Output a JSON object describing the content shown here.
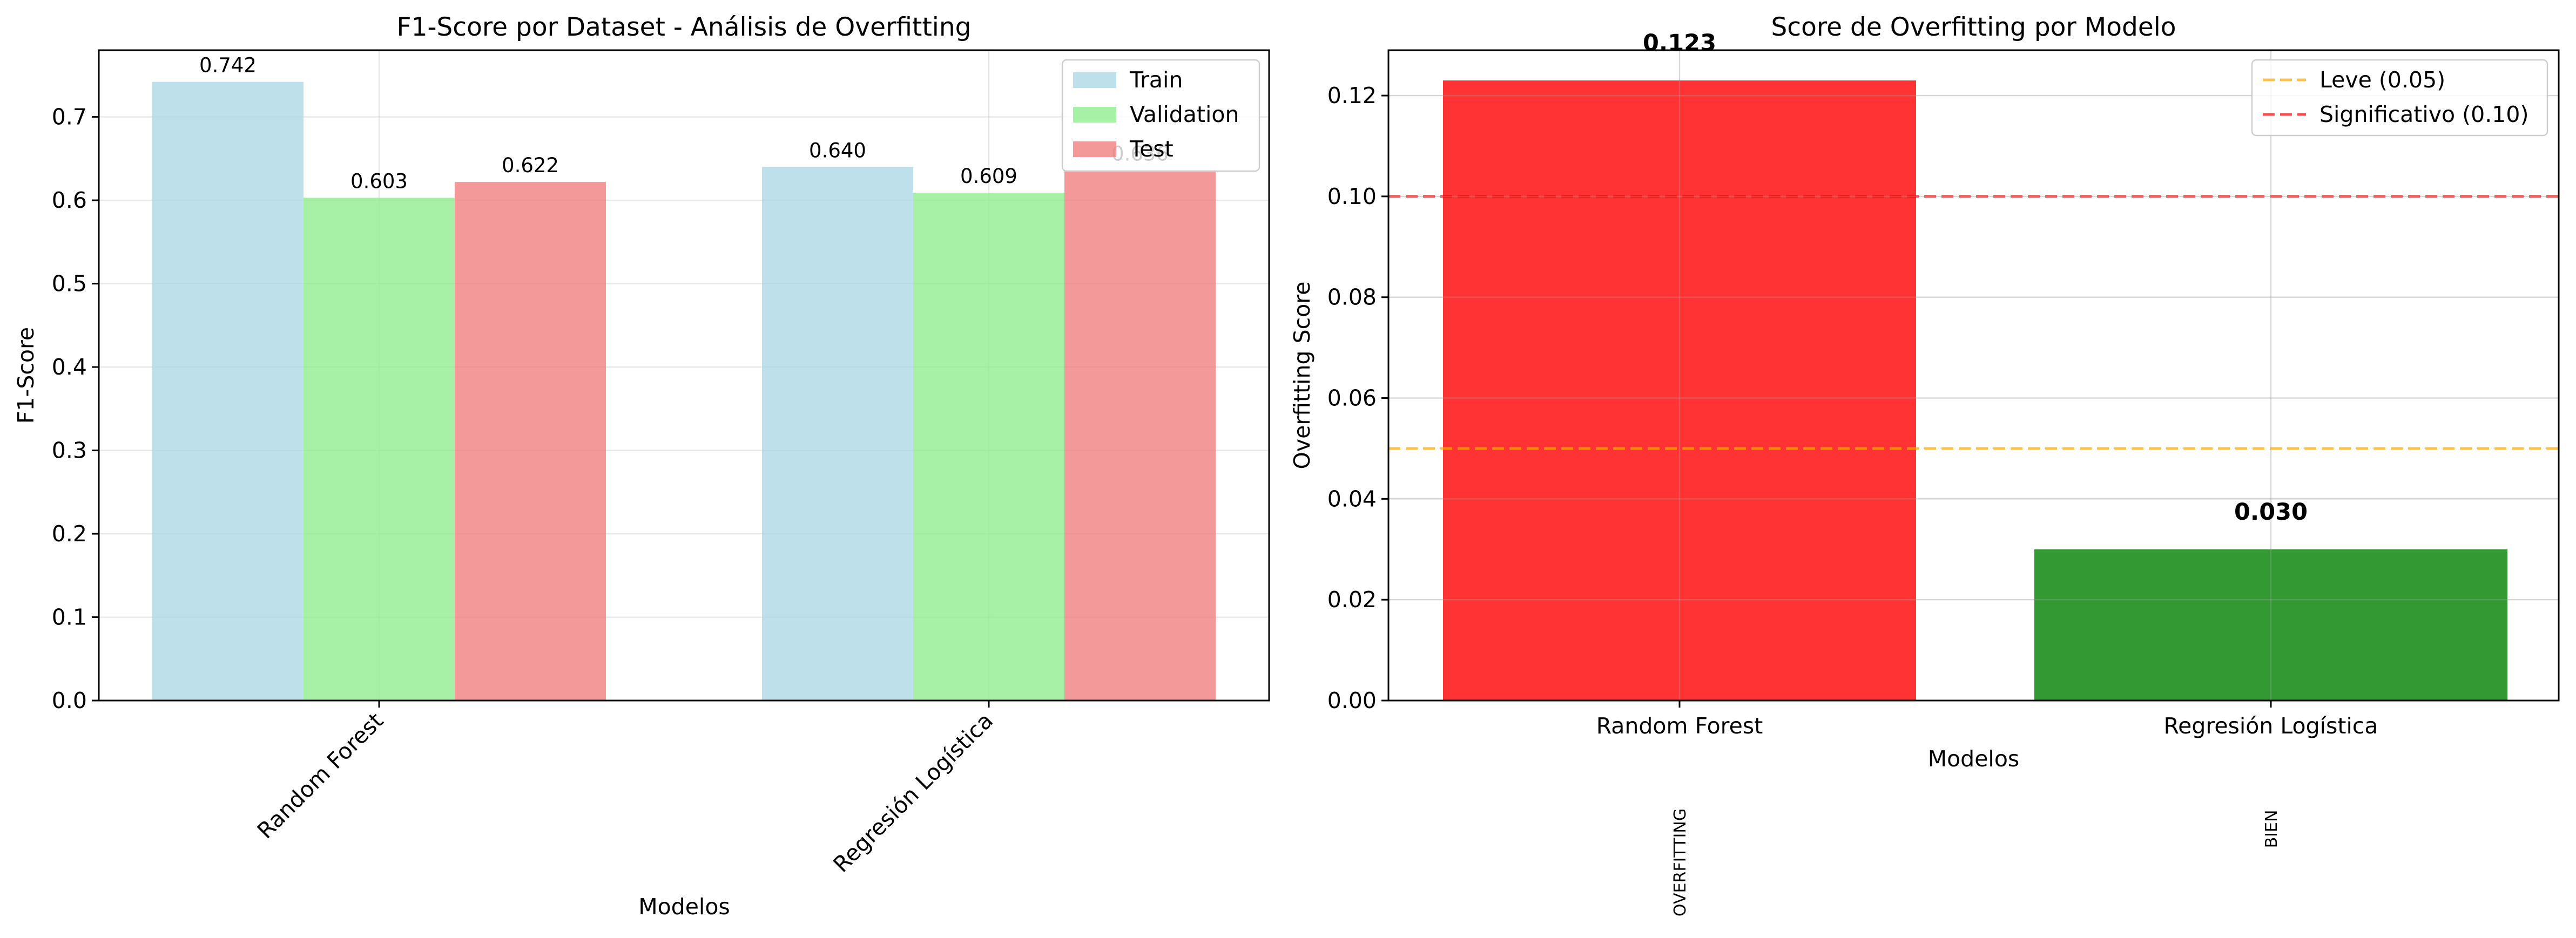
{
  "chart_data": [
    {
      "type": "bar",
      "title": "F1-Score por Dataset - Análisis de Overfitting",
      "xlabel": "Modelos",
      "ylabel": "F1-Score",
      "ylim": [
        0,
        0.78
      ],
      "yticks": [
        0.0,
        0.1,
        0.2,
        0.3,
        0.4,
        0.5,
        0.6,
        0.7
      ],
      "ytick_labels": [
        "0.0",
        "0.1",
        "0.2",
        "0.3",
        "0.4",
        "0.5",
        "0.6",
        "0.7"
      ],
      "categories": [
        "Random Forest",
        "Regresión Logística"
      ],
      "series": [
        {
          "name": "Train",
          "color": "#add8e6",
          "values": [
            0.742,
            0.64
          ],
          "labels": [
            "0.742",
            "0.640"
          ]
        },
        {
          "name": "Validation",
          "color": "#90ee90",
          "values": [
            0.603,
            0.609
          ],
          "labels": [
            "0.603",
            "0.609"
          ]
        },
        {
          "name": "Test",
          "color": "#f08080",
          "values": [
            0.622,
            0.636
          ],
          "labels": [
            "0.622",
            "0.636"
          ]
        }
      ],
      "grid": true,
      "legend": "top-right"
    },
    {
      "type": "bar",
      "title": "Score de Overfitting por Modelo",
      "xlabel": "Modelos",
      "ylabel": "Overfitting Score",
      "ylim": [
        0,
        0.129
      ],
      "yticks": [
        0.0,
        0.02,
        0.04,
        0.06,
        0.08,
        0.1,
        0.12
      ],
      "ytick_labels": [
        "0.00",
        "0.02",
        "0.04",
        "0.06",
        "0.08",
        "0.10",
        "0.12"
      ],
      "categories": [
        "Random Forest",
        "Regresión Logística"
      ],
      "values": [
        0.123,
        0.03
      ],
      "value_labels": [
        "0.123",
        "0.030"
      ],
      "bar_colors": [
        "#ff0000",
        "#008000"
      ],
      "status_labels": [
        "OVERFITTING",
        "BIEN"
      ],
      "reference_lines": [
        {
          "name": "Leve (0.05)",
          "value": 0.05,
          "color": "#ffa500"
        },
        {
          "name": "Significativo (0.10)",
          "value": 0.1,
          "color": "#ff0000"
        }
      ],
      "grid": true,
      "legend": "top-right"
    }
  ]
}
